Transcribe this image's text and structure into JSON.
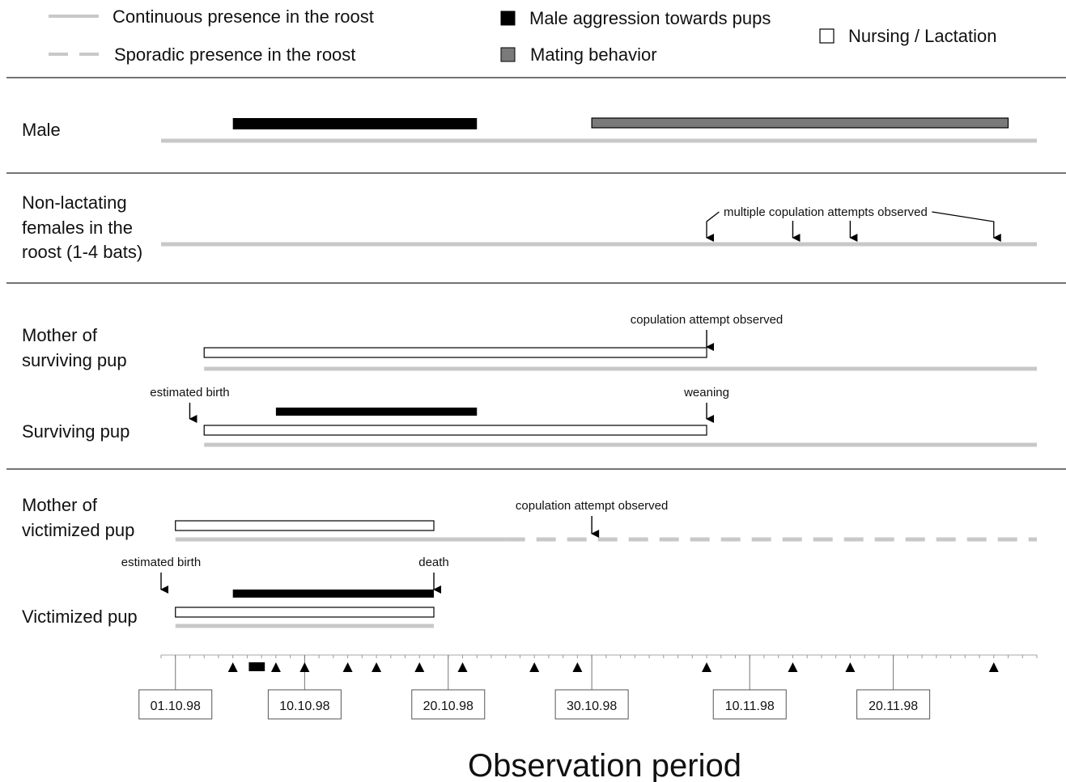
{
  "chart_data": {
    "type": "timeline",
    "title": "",
    "xlabel": "Observation period",
    "x_domain": [
      "1998-09-30",
      "1998-11-30"
    ],
    "x_tick_labels": [
      "01.10.98",
      "10.10.98",
      "20.10.98",
      "30.10.98",
      "10.11.98",
      "20.11.98"
    ],
    "x_tick_dates": [
      "1998-10-01",
      "1998-10-10",
      "1998-10-20",
      "1998-10-30",
      "1998-11-10",
      "1998-11-20"
    ],
    "legend": {
      "placement": "top",
      "entries": [
        {
          "label": "Continuous presence in the roost",
          "symbol": "gray-line"
        },
        {
          "label": "Sporadic presence in the roost",
          "symbol": "gray-dashed-line"
        },
        {
          "label": "Male aggression towards pups",
          "symbol": "black-box"
        },
        {
          "label": "Mating behavior",
          "symbol": "gray-box"
        },
        {
          "label": "Nursing / Lactation",
          "symbol": "white-box"
        }
      ]
    },
    "colors": {
      "presence": "#c8c8c8",
      "aggression": "#000000",
      "mating": "#7a7a7a",
      "nursing": "#ffffff"
    },
    "rows": [
      {
        "label": [
          "Male"
        ],
        "bars": [
          {
            "kind": "aggression",
            "start": "1998-10-05",
            "end": "1998-10-22"
          },
          {
            "kind": "mating",
            "start": "1998-10-30",
            "end": "1998-11-28"
          }
        ],
        "presence": [
          {
            "kind": "continuous",
            "start": "1998-09-30",
            "end": "1998-11-30"
          }
        ]
      },
      {
        "label": [
          "Non-lactating",
          "females in the",
          "roost (1-4 bats)"
        ],
        "presence": [
          {
            "kind": "continuous",
            "start": "1998-09-30",
            "end": "1998-11-30"
          }
        ],
        "group_annotation": {
          "text": "multiple copulation attempts observed",
          "dates": [
            "1998-11-07",
            "1998-11-13",
            "1998-11-17",
            "1998-11-27"
          ]
        }
      },
      {
        "label": [
          "Mother of",
          "surviving pup"
        ],
        "bars": [
          {
            "kind": "nursing",
            "start": "1998-10-03",
            "end": "1998-11-07"
          }
        ],
        "presence": [
          {
            "kind": "continuous",
            "start": "1998-10-03",
            "end": "1998-11-30"
          }
        ],
        "annotations": [
          {
            "text": "copulation attempt observed",
            "date": "1998-11-07"
          }
        ]
      },
      {
        "label": [
          "Surviving pup"
        ],
        "bars": [
          {
            "kind": "aggression",
            "start": "1998-10-08",
            "end": "1998-10-22"
          },
          {
            "kind": "nursing",
            "start": "1998-10-03",
            "end": "1998-11-07"
          }
        ],
        "presence": [
          {
            "kind": "continuous",
            "start": "1998-10-03",
            "end": "1998-11-30"
          }
        ],
        "annotations": [
          {
            "text": "estimated birth",
            "date": "1998-10-02"
          },
          {
            "text": "weaning",
            "date": "1998-11-07"
          }
        ]
      },
      {
        "label": [
          "Mother of",
          "victimized pup"
        ],
        "bars": [
          {
            "kind": "nursing",
            "start": "1998-10-01",
            "end": "1998-10-19"
          }
        ],
        "presence": [
          {
            "kind": "continuous",
            "start": "1998-10-01",
            "end": "1998-10-24"
          },
          {
            "kind": "sporadic",
            "start": "1998-10-24",
            "end": "1998-11-30"
          }
        ],
        "annotations": [
          {
            "text": "copulation attempt observed",
            "date": "1998-10-30"
          }
        ]
      },
      {
        "label": [
          "Victimized pup"
        ],
        "bars": [
          {
            "kind": "aggression",
            "start": "1998-10-05",
            "end": "1998-10-19"
          },
          {
            "kind": "nursing",
            "start": "1998-10-01",
            "end": "1998-10-19"
          }
        ],
        "presence": [
          {
            "kind": "continuous",
            "start": "1998-10-01",
            "end": "1998-10-19"
          }
        ],
        "annotations": [
          {
            "text": "estimated birth",
            "date": "1998-09-30"
          },
          {
            "text": "death",
            "date": "1998-10-19"
          }
        ]
      }
    ],
    "axis_markers": {
      "triangle_dates": [
        "1998-10-05",
        "1998-10-08",
        "1998-10-10",
        "1998-10-13",
        "1998-10-15",
        "1998-10-18",
        "1998-10-21",
        "1998-10-26",
        "1998-10-29",
        "1998-11-07",
        "1998-11-13",
        "1998-11-17",
        "1998-11-27"
      ],
      "block": {
        "start": "1998-10-06",
        "end": "1998-10-07"
      }
    }
  }
}
